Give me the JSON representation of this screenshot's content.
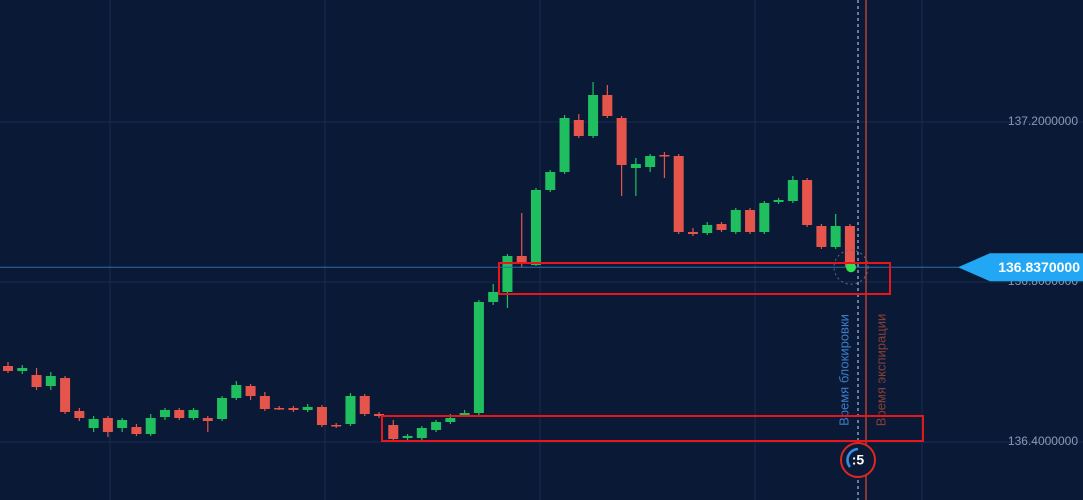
{
  "chart_data": {
    "type": "candlestick",
    "open": [
      136.59,
      136.5775,
      136.5675,
      136.54,
      136.56,
      136.4775,
      136.435,
      136.46,
      136.435,
      136.4375,
      136.42,
      136.4625,
      136.48,
      136.46,
      136.46,
      136.4575,
      136.51,
      136.54,
      136.515,
      136.485,
      136.485,
      136.48,
      136.4875,
      136.4425,
      136.445,
      136.515,
      136.47,
      136.4425,
      136.41,
      136.41,
      136.43,
      136.45,
      136.465,
      136.4725,
      136.75,
      136.775,
      136.865,
      136.8425,
      137.03,
      137.075,
      137.205,
      137.165,
      137.2675,
      137.21,
      137.085,
      137.0875,
      137.1175,
      137.115,
      136.925,
      136.9225,
      136.945,
      136.925,
      136.98,
      136.925,
      137.0,
      137.0025,
      137.055,
      136.94,
      136.8875,
      136.94
    ],
    "high": [
      136.6,
      136.5925,
      136.585,
      136.575,
      136.565,
      136.485,
      136.465,
      136.465,
      136.46,
      136.445,
      136.47,
      136.485,
      136.485,
      136.485,
      136.465,
      136.515,
      136.5525,
      136.545,
      136.525,
      136.49,
      136.49,
      136.495,
      136.4925,
      136.4475,
      136.5225,
      136.52,
      136.475,
      136.455,
      136.42,
      136.44,
      136.455,
      136.47,
      136.48,
      136.755,
      136.795,
      136.87,
      136.9725,
      137.035,
      137.08,
      137.2175,
      137.22,
      137.3,
      137.2925,
      137.215,
      137.11,
      137.12,
      137.125,
      137.12,
      136.935,
      136.95,
      136.95,
      136.985,
      136.985,
      137.0025,
      137.01,
      137.065,
      137.06,
      136.945,
      136.97,
      136.945
    ],
    "low": [
      136.5725,
      136.57,
      136.53,
      136.53,
      136.47,
      136.4525,
      136.425,
      136.4125,
      136.425,
      136.415,
      136.415,
      136.455,
      136.455,
      136.455,
      136.425,
      136.4525,
      136.505,
      136.505,
      136.4775,
      136.48,
      136.475,
      136.475,
      136.4375,
      136.435,
      136.44,
      136.465,
      136.46,
      136.4025,
      136.405,
      136.405,
      136.425,
      136.445,
      136.4625,
      136.4675,
      136.7425,
      136.735,
      136.8375,
      136.84,
      137.025,
      137.07,
      137.16,
      137.16,
      137.21,
      137.015,
      137.015,
      137.075,
      137.06,
      136.92,
      136.915,
      136.9175,
      136.925,
      136.92,
      136.92,
      136.92,
      136.995,
      136.9975,
      136.9375,
      136.8825,
      136.8825,
      136.83
    ],
    "close": [
      136.5775,
      136.585,
      136.5375,
      136.565,
      136.475,
      136.46,
      136.4575,
      136.425,
      136.455,
      136.42,
      136.46,
      136.48,
      136.46,
      136.48,
      136.4525,
      136.51,
      136.5425,
      136.515,
      136.4825,
      136.4825,
      136.48,
      136.4875,
      136.4425,
      136.44,
      136.515,
      136.47,
      136.465,
      136.4075,
      136.415,
      136.435,
      136.45,
      136.46,
      136.4725,
      136.75,
      136.775,
      136.865,
      136.845,
      137.03,
      137.075,
      137.21,
      137.165,
      137.2675,
      137.215,
      137.0925,
      137.095,
      137.115,
      137.115,
      136.925,
      136.92,
      136.9425,
      136.93,
      136.98,
      136.925,
      136.9975,
      137.005,
      137.055,
      136.9425,
      136.8875,
      136.94,
      136.8375
    ],
    "up_color": "#1fbf5f",
    "down_color": "#e5554c",
    "ylim": [
      136.255,
      137.505
    ],
    "yticks": [
      {
        "value": 136.4,
        "label": "136.4000000"
      },
      {
        "value": 136.8,
        "label": "136.8000000"
      },
      {
        "value": 137.2,
        "label": "137.2000000"
      }
    ],
    "grid": true,
    "current_price": {
      "value": 136.837,
      "label": "136.8370000"
    }
  },
  "markers": {
    "lock_time": "Время блокировки",
    "expiry_time": "Время экспирации",
    "timer": ":5"
  }
}
